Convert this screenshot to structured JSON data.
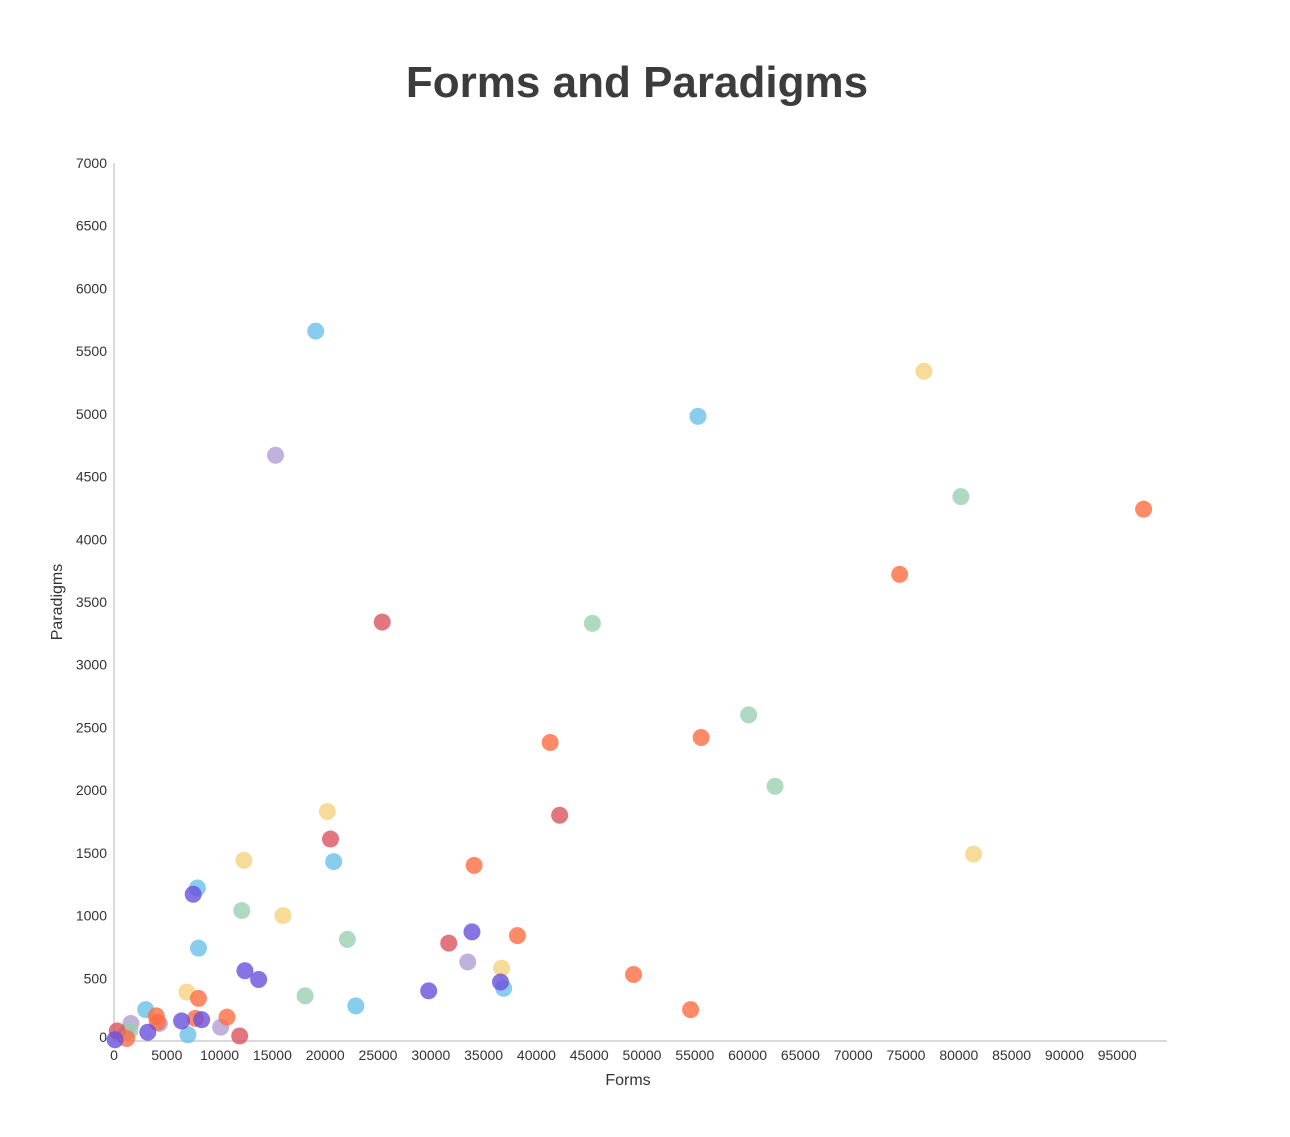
{
  "chart_data": {
    "type": "scatter",
    "title": "Forms and Paradigms",
    "xlabel": "Forms",
    "ylabel": "Paradigms",
    "xlim": [
      0,
      100000
    ],
    "ylim": [
      0,
      7000
    ],
    "x_ticks": [
      0,
      5000,
      10000,
      15000,
      20000,
      25000,
      30000,
      35000,
      40000,
      45000,
      50000,
      55000,
      60000,
      65000,
      70000,
      75000,
      80000,
      85000,
      90000,
      95000
    ],
    "y_ticks": [
      0,
      500,
      1000,
      1500,
      2000,
      2500,
      3000,
      3500,
      4000,
      4500,
      5000,
      5500,
      6000,
      6500,
      7000
    ],
    "grid": false,
    "legend": "none",
    "colors": {
      "blue": "#6bc0ea",
      "purple": "#b09fd1",
      "yellow": "#f5d27f",
      "green": "#9ccfb2",
      "red": "#d9545f",
      "orange": "#ff6d42",
      "violet": "#6a50db"
    },
    "points": [
      {
        "x": 19100,
        "y": 5660,
        "color": "blue"
      },
      {
        "x": 55300,
        "y": 4980,
        "color": "blue"
      },
      {
        "x": 20800,
        "y": 1430,
        "color": "blue"
      },
      {
        "x": 7900,
        "y": 1220,
        "color": "blue"
      },
      {
        "x": 8000,
        "y": 740,
        "color": "blue"
      },
      {
        "x": 22900,
        "y": 280,
        "color": "blue"
      },
      {
        "x": 36900,
        "y": 420,
        "color": "blue"
      },
      {
        "x": 3000,
        "y": 250,
        "color": "blue"
      },
      {
        "x": 7000,
        "y": 50,
        "color": "blue"
      },
      {
        "x": 1200,
        "y": 70,
        "color": "blue"
      },
      {
        "x": 15300,
        "y": 4670,
        "color": "purple"
      },
      {
        "x": 33500,
        "y": 630,
        "color": "purple"
      },
      {
        "x": 10100,
        "y": 110,
        "color": "purple"
      },
      {
        "x": 1600,
        "y": 140,
        "color": "purple"
      },
      {
        "x": 4300,
        "y": 140,
        "color": "purple"
      },
      {
        "x": 76700,
        "y": 5340,
        "color": "yellow"
      },
      {
        "x": 81400,
        "y": 1490,
        "color": "yellow"
      },
      {
        "x": 20200,
        "y": 1830,
        "color": "yellow"
      },
      {
        "x": 12300,
        "y": 1440,
        "color": "yellow"
      },
      {
        "x": 16000,
        "y": 1000,
        "color": "yellow"
      },
      {
        "x": 36700,
        "y": 580,
        "color": "yellow"
      },
      {
        "x": 6900,
        "y": 390,
        "color": "yellow"
      },
      {
        "x": 80200,
        "y": 4340,
        "color": "green"
      },
      {
        "x": 45300,
        "y": 3330,
        "color": "green"
      },
      {
        "x": 60100,
        "y": 2600,
        "color": "green"
      },
      {
        "x": 62600,
        "y": 2030,
        "color": "green"
      },
      {
        "x": 12100,
        "y": 1040,
        "color": "green"
      },
      {
        "x": 22100,
        "y": 810,
        "color": "green"
      },
      {
        "x": 18100,
        "y": 360,
        "color": "green"
      },
      {
        "x": 1500,
        "y": 80,
        "color": "green"
      },
      {
        "x": 25400,
        "y": 3340,
        "color": "red"
      },
      {
        "x": 42200,
        "y": 1800,
        "color": "red"
      },
      {
        "x": 20500,
        "y": 1610,
        "color": "red"
      },
      {
        "x": 31700,
        "y": 780,
        "color": "red"
      },
      {
        "x": 11900,
        "y": 40,
        "color": "red"
      },
      {
        "x": 300,
        "y": 80,
        "color": "red"
      },
      {
        "x": 97500,
        "y": 4240,
        "color": "orange"
      },
      {
        "x": 74400,
        "y": 3720,
        "color": "orange"
      },
      {
        "x": 55600,
        "y": 2420,
        "color": "orange"
      },
      {
        "x": 41300,
        "y": 2380,
        "color": "orange"
      },
      {
        "x": 34100,
        "y": 1400,
        "color": "orange"
      },
      {
        "x": 38200,
        "y": 840,
        "color": "orange"
      },
      {
        "x": 49200,
        "y": 530,
        "color": "orange"
      },
      {
        "x": 54600,
        "y": 250,
        "color": "orange"
      },
      {
        "x": 8000,
        "y": 340,
        "color": "orange"
      },
      {
        "x": 10700,
        "y": 190,
        "color": "orange"
      },
      {
        "x": 7700,
        "y": 180,
        "color": "orange"
      },
      {
        "x": 4000,
        "y": 200,
        "color": "orange"
      },
      {
        "x": 4100,
        "y": 150,
        "color": "orange"
      },
      {
        "x": 1200,
        "y": 20,
        "color": "orange"
      },
      {
        "x": 7500,
        "y": 1170,
        "color": "violet"
      },
      {
        "x": 33900,
        "y": 870,
        "color": "violet"
      },
      {
        "x": 12400,
        "y": 560,
        "color": "violet"
      },
      {
        "x": 13700,
        "y": 490,
        "color": "violet"
      },
      {
        "x": 29800,
        "y": 400,
        "color": "violet"
      },
      {
        "x": 36600,
        "y": 470,
        "color": "violet"
      },
      {
        "x": 6400,
        "y": 160,
        "color": "violet"
      },
      {
        "x": 8300,
        "y": 170,
        "color": "violet"
      },
      {
        "x": 3200,
        "y": 70,
        "color": "violet"
      },
      {
        "x": 100,
        "y": 10,
        "color": "violet"
      }
    ]
  }
}
